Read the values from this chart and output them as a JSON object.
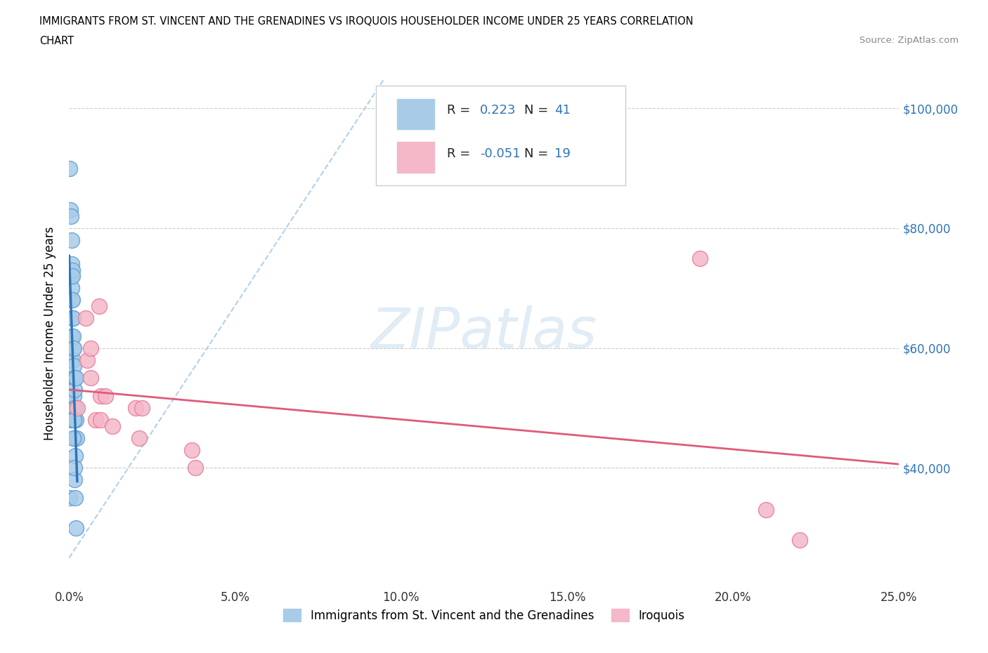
{
  "title_line1": "IMMIGRANTS FROM ST. VINCENT AND THE GRENADINES VS IROQUOIS HOUSEHOLDER INCOME UNDER 25 YEARS CORRELATION",
  "title_line2": "CHART",
  "source": "Source: ZipAtlas.com",
  "ylabel": "Householder Income Under 25 years",
  "blue_color": "#a8cce8",
  "blue_edge_color": "#5b9bd5",
  "blue_line_color": "#2e75b6",
  "pink_color": "#f4b8c8",
  "pink_edge_color": "#e8789a",
  "pink_line_color": "#e05a7a",
  "ref_line_color": "#a8cce8",
  "R_blue": 0.223,
  "N_blue": 41,
  "R_pink": -0.051,
  "N_pink": 19,
  "blue_x": [
    0.0002,
    0.0003,
    0.0004,
    0.0005,
    0.0006,
    0.0007,
    0.0007,
    0.0008,
    0.0008,
    0.0009,
    0.001,
    0.001,
    0.0011,
    0.0011,
    0.0012,
    0.0012,
    0.0013,
    0.0013,
    0.0014,
    0.0014,
    0.0015,
    0.0015,
    0.0016,
    0.0016,
    0.0017,
    0.0018,
    0.0019,
    0.002,
    0.0021,
    0.0022,
    0.0002,
    0.0003,
    0.0005,
    0.0008,
    0.0009,
    0.0012,
    0.0013,
    0.0015,
    0.0016,
    0.0018,
    0.002
  ],
  "blue_y": [
    35000,
    48000,
    52000,
    58000,
    72000,
    68000,
    74000,
    62000,
    70000,
    65000,
    68000,
    73000,
    60000,
    65000,
    58000,
    62000,
    55000,
    60000,
    57000,
    52000,
    50000,
    55000,
    48000,
    53000,
    45000,
    42000,
    50000,
    48000,
    55000,
    45000,
    90000,
    83000,
    82000,
    78000,
    72000,
    45000,
    48000,
    38000,
    40000,
    35000,
    30000
  ],
  "pink_x": [
    0.0025,
    0.005,
    0.0055,
    0.0065,
    0.0065,
    0.008,
    0.009,
    0.0095,
    0.0095,
    0.011,
    0.013,
    0.02,
    0.021,
    0.022,
    0.037,
    0.038,
    0.19,
    0.21,
    0.22
  ],
  "pink_y": [
    50000,
    65000,
    58000,
    60000,
    55000,
    48000,
    67000,
    52000,
    48000,
    52000,
    47000,
    50000,
    45000,
    50000,
    43000,
    40000,
    75000,
    33000,
    28000
  ],
  "xlim": [
    0.0,
    0.25
  ],
  "ylim": [
    20000,
    105000
  ],
  "yticks": [
    40000,
    60000,
    80000,
    100000
  ],
  "ytick_labels": [
    "$40,000",
    "$60,000",
    "$80,000",
    "$100,000"
  ],
  "xticks": [
    0.0,
    0.05,
    0.1,
    0.15,
    0.2,
    0.25
  ],
  "xtick_labels": [
    "0.0%",
    "5.0%",
    "10.0%",
    "15.0%",
    "20.0%",
    "25.0%"
  ],
  "watermark": "ZIPatlas",
  "background_color": "#ffffff",
  "grid_color": "#cccccc"
}
